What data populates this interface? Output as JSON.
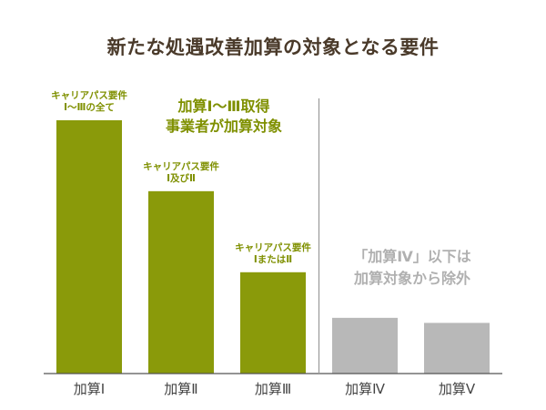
{
  "title": "新たな処遇改善加算の対象となる要件",
  "colors": {
    "eligible": "#8a9a0a",
    "ineligible": "#b8b8b8",
    "eligible_text": "#7f9000",
    "ineligible_text": "#b0b0b0",
    "axis": "#555555",
    "divider": "#9a9a9a",
    "tick_text": "#444444"
  },
  "chart_data": {
    "type": "bar",
    "title": "新たな処遇改善加算の対象となる要件",
    "categories": [
      "加算Ⅰ",
      "加算Ⅱ",
      "加算Ⅲ",
      "加算Ⅳ",
      "加算Ⅴ"
    ],
    "values": [
      100,
      72,
      40,
      22,
      20
    ],
    "ylim": [
      0,
      100
    ],
    "eligible": [
      true,
      true,
      true,
      false,
      false
    ],
    "grid": false,
    "bar_labels": [
      [
        "キャリアパス要件",
        "Ⅰ～Ⅲの全て"
      ],
      [
        "キャリアパス要件",
        "Ⅰ及びⅡ"
      ],
      [
        "キャリアパス要件",
        "ⅠまたはⅡ"
      ],
      [],
      []
    ],
    "annotations": {
      "eligible": [
        "加算Ⅰ～Ⅲ取得",
        "事業者が加算対象"
      ],
      "ineligible": [
        "「加算Ⅳ」以下は",
        "加算対象から除外"
      ]
    }
  }
}
